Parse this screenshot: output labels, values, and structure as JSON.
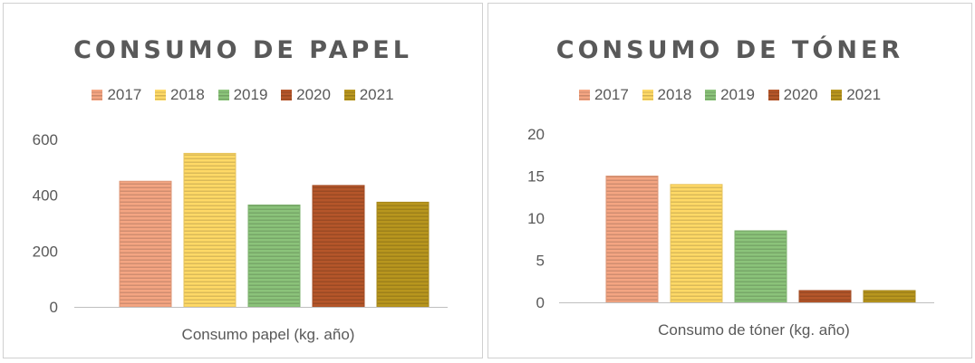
{
  "chart_data": [
    {
      "type": "bar",
      "title": "CONSUMO DE PAPEL",
      "categories": [
        "Consumo papel (kg. año)"
      ],
      "series": [
        {
          "name": "2017",
          "values": [
            450
          ],
          "color": "#f4a582"
        },
        {
          "name": "2018",
          "values": [
            550
          ],
          "color": "#ffd966"
        },
        {
          "name": "2019",
          "values": [
            365
          ],
          "color": "#8bc37a"
        },
        {
          "name": "2020",
          "values": [
            435
          ],
          "color": "#b5562a"
        },
        {
          "name": "2021",
          "values": [
            375
          ],
          "color": "#b8961e"
        }
      ],
      "ylim": [
        0,
        600
      ],
      "yticks": [
        "0",
        "200",
        "400",
        "600"
      ],
      "grid": false,
      "legend_position": "top"
    },
    {
      "type": "bar",
      "title": "CONSUMO DE TÓNER",
      "categories": [
        "Consumo de tóner (kg. año)"
      ],
      "series": [
        {
          "name": "2017",
          "values": [
            15
          ],
          "color": "#f4a582"
        },
        {
          "name": "2018",
          "values": [
            14
          ],
          "color": "#ffd966"
        },
        {
          "name": "2019",
          "values": [
            8.5
          ],
          "color": "#8bc37a"
        },
        {
          "name": "2020",
          "values": [
            1.4
          ],
          "color": "#b5562a"
        },
        {
          "name": "2021",
          "values": [
            1.4
          ],
          "color": "#b8961e"
        }
      ],
      "ylim": [
        0,
        20
      ],
      "yticks": [
        "0",
        "5",
        "10",
        "15",
        "20"
      ],
      "grid": false,
      "legend_position": "top"
    }
  ]
}
